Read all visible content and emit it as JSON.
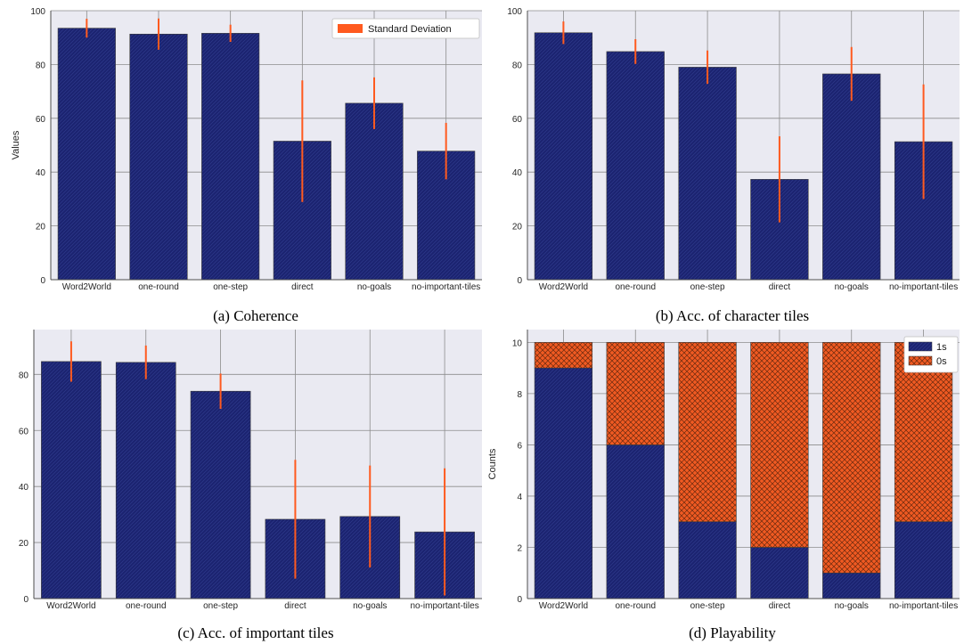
{
  "colors": {
    "bar": "#1b2370",
    "bar_top": "#1b2370",
    "zeros": "#f05a22",
    "error": "#ff5a1f",
    "plot_bg": "#eaeaf2",
    "grid": "#8c8c8c"
  },
  "chart_data": [
    {
      "type": "bar",
      "caption": "(a) Coherence",
      "categories": [
        "Word2World",
        "one-round",
        "one-step",
        "direct",
        "no-goals",
        "no-important-tiles"
      ],
      "values": [
        93.5,
        91.3,
        91.6,
        51.5,
        65.6,
        47.8
      ],
      "errors": [
        3.5,
        5.8,
        3.2,
        22.6,
        9.6,
        10.5
      ],
      "xlabel": "",
      "ylabel": "Values",
      "ylim": [
        0,
        100
      ],
      "yticks": [
        0,
        20,
        40,
        60,
        80,
        100
      ],
      "grid": true,
      "legend": {
        "entries": [
          "Standard Deviation"
        ],
        "placement": "top-right"
      }
    },
    {
      "type": "bar",
      "caption": "(b) Acc. of character tiles",
      "categories": [
        "Word2World",
        "one-round",
        "one-step",
        "direct",
        "no-goals",
        "no-important-tiles"
      ],
      "values": [
        91.8,
        84.8,
        79.0,
        37.3,
        76.5,
        51.3
      ],
      "errors": [
        4.2,
        4.6,
        6.2,
        16.0,
        10.0,
        21.3
      ],
      "xlabel": "",
      "ylabel": "",
      "ylim": [
        0,
        100
      ],
      "yticks": [
        0,
        20,
        40,
        60,
        80,
        100
      ],
      "grid": true
    },
    {
      "type": "bar",
      "caption": "(c) Acc. of important tiles",
      "categories": [
        "Word2World",
        "one-round",
        "one-step",
        "direct",
        "no-goals",
        "no-important-tiles"
      ],
      "values": [
        84.6,
        84.3,
        74.0,
        28.3,
        29.3,
        23.8
      ],
      "errors": [
        7.2,
        6.0,
        6.3,
        21.2,
        18.2,
        22.7
      ],
      "xlabel": "",
      "ylabel": "",
      "ylim": [
        0,
        96
      ],
      "yticks": [
        0,
        20,
        40,
        60,
        80
      ],
      "grid": true
    },
    {
      "type": "bar",
      "stacked": true,
      "caption": "(d) Playability",
      "categories": [
        "Word2World",
        "one-round",
        "one-step",
        "direct",
        "no-goals",
        "no-important-tiles"
      ],
      "series": [
        {
          "name": "1s",
          "values": [
            9,
            6,
            3,
            2,
            1,
            3
          ]
        },
        {
          "name": "0s",
          "values": [
            1,
            4,
            7,
            8,
            9,
            7
          ]
        }
      ],
      "xlabel": "",
      "ylabel": "Counts",
      "ylim": [
        0,
        10.5
      ],
      "yticks": [
        0,
        2,
        4,
        6,
        8,
        10
      ],
      "grid": true,
      "legend": {
        "entries": [
          "1s",
          "0s"
        ],
        "placement": "top-right"
      }
    }
  ]
}
